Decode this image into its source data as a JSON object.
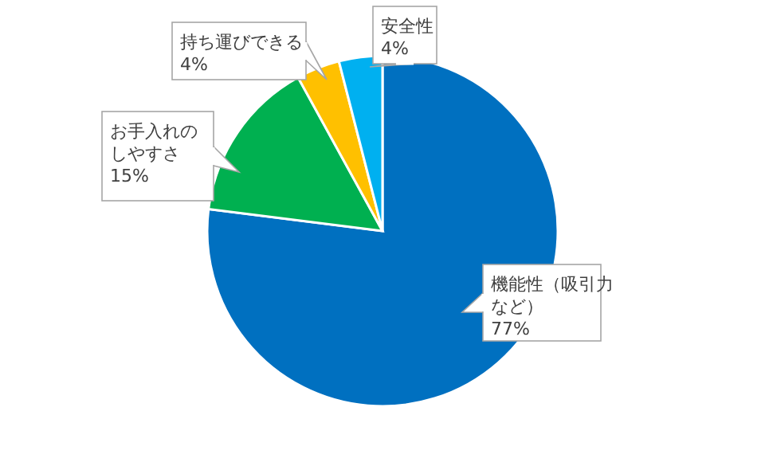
{
  "chart_data": {
    "type": "pie",
    "categories": [
      "機能性（吸引力など）",
      "お手入れのしやすさ",
      "持ち運びできる",
      "安全性"
    ],
    "values": [
      77,
      15,
      4,
      4
    ],
    "colors": [
      "#0070c0",
      "#00b050",
      "#ffc000",
      "#00b0f0"
    ],
    "value_labels": [
      "77%",
      "15%",
      "4%",
      "4%"
    ]
  }
}
